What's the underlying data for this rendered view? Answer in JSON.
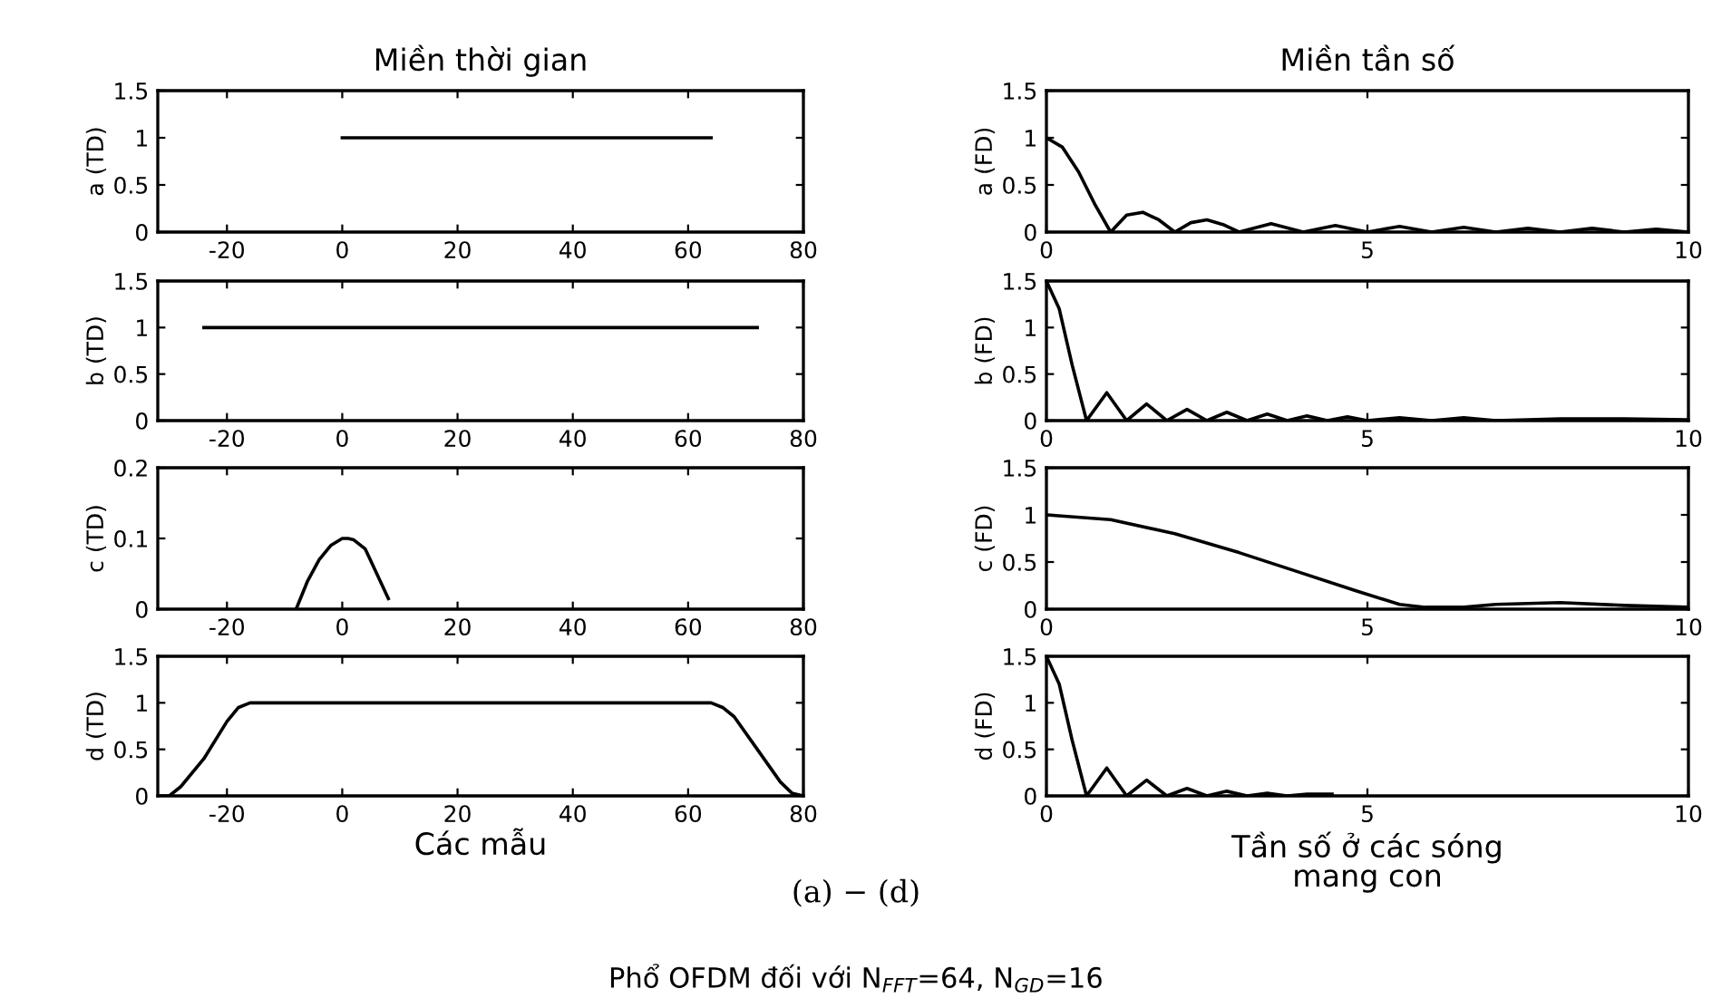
{
  "chart_data": [
    {
      "type": "line",
      "title": "Miền thời gian",
      "ylabel": "a (TD)",
      "xlim": [
        -32,
        80
      ],
      "xticks": [
        -20,
        0,
        20,
        40,
        60,
        80
      ],
      "ylim": [
        0,
        1.5
      ],
      "yticks": [
        0,
        0.5,
        1,
        1.5
      ],
      "grid": false,
      "series": [
        {
          "color": "#000000",
          "x": [
            0,
            64
          ],
          "values": [
            1,
            1
          ]
        }
      ]
    },
    {
      "type": "line",
      "title": "Miền tần số",
      "ylabel": "a (FD)",
      "xlim": [
        0,
        10
      ],
      "xticks": [
        0,
        5,
        10
      ],
      "ylim": [
        0,
        1.5
      ],
      "yticks": [
        0,
        0.5,
        1,
        1.5
      ],
      "grid": false,
      "series": [
        {
          "color": "#000000",
          "x": [
            0,
            0.25,
            0.5,
            0.75,
            1,
            1.25,
            1.5,
            1.75,
            2,
            2.25,
            2.5,
            2.75,
            3,
            3.5,
            4,
            4.5,
            5,
            5.5,
            6,
            6.5,
            7,
            7.5,
            8,
            8.5,
            9,
            9.5,
            10
          ],
          "values": [
            1,
            0.9,
            0.64,
            0.3,
            0,
            0.18,
            0.21,
            0.13,
            0,
            0.1,
            0.13,
            0.08,
            0,
            0.09,
            0,
            0.07,
            0,
            0.06,
            0,
            0.05,
            0,
            0.04,
            0,
            0.04,
            0,
            0.03,
            0
          ]
        }
      ]
    },
    {
      "type": "line",
      "ylabel": "b (TD)",
      "xlim": [
        -32,
        80
      ],
      "xticks": [
        -20,
        0,
        20,
        40,
        60,
        80
      ],
      "ylim": [
        0,
        1.5
      ],
      "yticks": [
        0,
        0.5,
        1,
        1.5
      ],
      "grid": false,
      "series": [
        {
          "color": "#000000",
          "x": [
            -24,
            72
          ],
          "values": [
            1,
            1
          ]
        }
      ]
    },
    {
      "type": "line",
      "ylabel": "b (FD)",
      "xlim": [
        0,
        10
      ],
      "xticks": [
        0,
        5,
        10
      ],
      "ylim": [
        0,
        1.5
      ],
      "yticks": [
        0,
        0.5,
        1,
        1.5
      ],
      "grid": false,
      "series": [
        {
          "color": "#000000",
          "x": [
            0,
            0.2,
            0.4,
            0.625,
            0.94,
            1.25,
            1.56,
            1.875,
            2.19,
            2.5,
            2.81,
            3.125,
            3.44,
            3.75,
            4.06,
            4.375,
            4.69,
            5,
            5.5,
            6,
            6.5,
            7,
            8,
            9,
            10
          ],
          "values": [
            1.5,
            1.2,
            0.6,
            0,
            0.3,
            0,
            0.18,
            0,
            0.12,
            0,
            0.09,
            0,
            0.07,
            0,
            0.05,
            0,
            0.04,
            0,
            0.03,
            0,
            0.03,
            0,
            0.02,
            0.02,
            0.01
          ]
        }
      ]
    },
    {
      "type": "line",
      "ylabel": "c (TD)",
      "xlim": [
        -32,
        80
      ],
      "xticks": [
        -20,
        0,
        20,
        40,
        60,
        80
      ],
      "ylim": [
        0,
        0.2
      ],
      "yticks": [
        0,
        0.1,
        0.2
      ],
      "grid": false,
      "series": [
        {
          "color": "#000000",
          "x": [
            -8,
            -6,
            -4,
            -2,
            0,
            1,
            2,
            4,
            6,
            8
          ],
          "values": [
            0,
            0.04,
            0.07,
            0.09,
            0.1,
            0.1,
            0.098,
            0.085,
            0.05,
            0.015
          ]
        }
      ]
    },
    {
      "type": "line",
      "ylabel": "c (FD)",
      "xlim": [
        0,
        10
      ],
      "xticks": [
        0,
        5,
        10
      ],
      "ylim": [
        0,
        1.5
      ],
      "yticks": [
        0,
        0.5,
        1,
        1.5
      ],
      "grid": false,
      "series": [
        {
          "color": "#000000",
          "x": [
            0,
            1,
            2,
            3,
            3.9,
            4.8,
            5.5,
            5.9,
            6.5,
            7,
            8,
            9,
            10
          ],
          "values": [
            1,
            0.95,
            0.8,
            0.6,
            0.4,
            0.2,
            0.05,
            0.02,
            0.02,
            0.05,
            0.07,
            0.04,
            0.02
          ]
        }
      ]
    },
    {
      "type": "line",
      "ylabel": "d (TD)",
      "xlabel": "Các mẫu",
      "xlim": [
        -32,
        80
      ],
      "xticks": [
        -20,
        0,
        20,
        40,
        60,
        80
      ],
      "ylim": [
        0,
        1.5
      ],
      "yticks": [
        0,
        0.5,
        1,
        1.5
      ],
      "grid": false,
      "series": [
        {
          "color": "#000000",
          "x": [
            -32,
            -30,
            -28,
            -24,
            -20,
            -18,
            -16,
            64,
            66,
            68,
            72,
            76,
            78,
            80
          ],
          "values": [
            0,
            0,
            0.1,
            0.4,
            0.8,
            0.95,
            1,
            1,
            0.95,
            0.85,
            0.5,
            0.15,
            0.03,
            0
          ]
        }
      ]
    },
    {
      "type": "line",
      "ylabel": "d (FD)",
      "xlabel": "Tần số ở các sóng\nmang con",
      "xlim": [
        0,
        10
      ],
      "xticks": [
        0,
        5,
        10
      ],
      "ylim": [
        0,
        1.5
      ],
      "yticks": [
        0,
        0.5,
        1,
        1.5
      ],
      "grid": false,
      "annotations": [
        "(a) − (d)",
        "Phổ OFDM đối với N$_{FFT}$=64, N$_{GD}$=16"
      ],
      "series": [
        {
          "color": "#000000",
          "x": [
            0,
            0.2,
            0.4,
            0.625,
            0.94,
            1.25,
            1.56,
            1.875,
            2.19,
            2.5,
            2.81,
            3.125,
            3.44,
            3.75,
            4.06,
            4.45
          ],
          "values": [
            1.5,
            1.2,
            0.6,
            0,
            0.3,
            0,
            0.17,
            0,
            0.08,
            0,
            0.05,
            0,
            0.03,
            0,
            0.02,
            0.02
          ]
        }
      ]
    }
  ]
}
